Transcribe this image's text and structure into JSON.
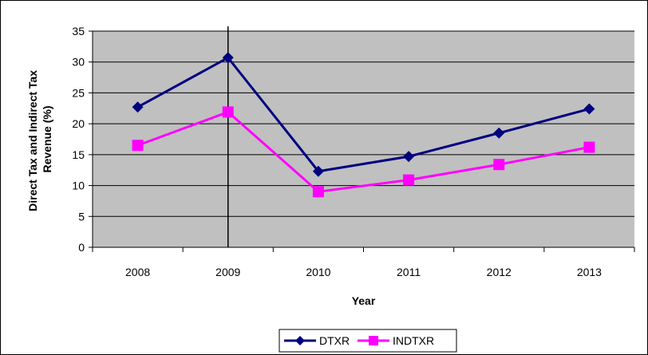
{
  "chart_data": {
    "type": "line",
    "title": "",
    "xlabel": "Year",
    "ylabel": "Direct Tax and Indirect Tax Revenue (%)",
    "ylabel_lines": [
      "Direct Tax and Indirect Tax",
      "Revenue (%)"
    ],
    "categories": [
      "2008",
      "2009",
      "2010",
      "2011",
      "2012",
      "2013"
    ],
    "ylim": [
      0,
      35
    ],
    "yticks": [
      0,
      5,
      10,
      15,
      20,
      25,
      30,
      35
    ],
    "grid": true,
    "legend": "bottom",
    "plot_background": "#c0c0c0",
    "series": [
      {
        "name": "DTXR",
        "values": [
          22.7,
          30.7,
          12.3,
          14.7,
          18.5,
          22.4
        ],
        "color": "#000080",
        "marker": "diamond"
      },
      {
        "name": "INDTXR",
        "values": [
          16.5,
          21.9,
          9.0,
          10.9,
          13.4,
          16.2
        ],
        "color": "#ff00ff",
        "marker": "square"
      }
    ]
  }
}
